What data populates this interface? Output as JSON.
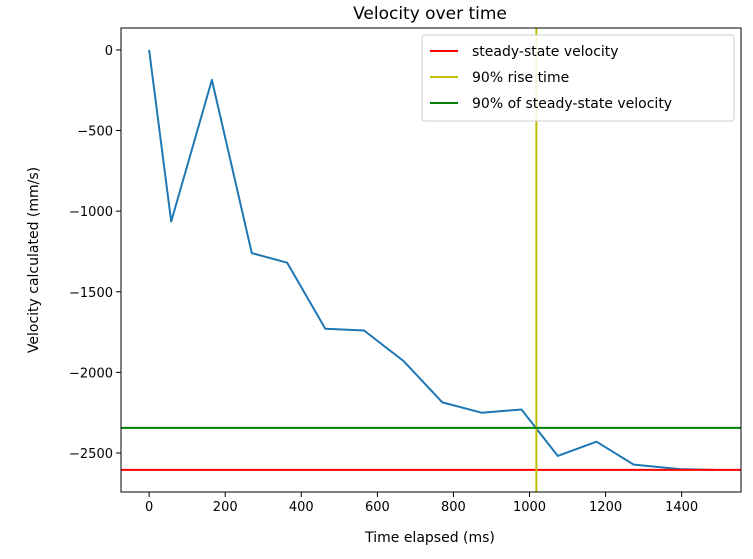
{
  "chart_data": {
    "type": "line",
    "title": "Velocity over time",
    "xlabel": "Time elapsed (ms)",
    "ylabel": "Velocity calculated (mm/s)",
    "xlim": [
      -74,
      1556
    ],
    "ylim": [
      -2742,
      136
    ],
    "xticks": [
      0,
      200,
      400,
      600,
      800,
      1000,
      1200,
      1400
    ],
    "yticks": [
      0,
      -500,
      -1000,
      -1500,
      -2000,
      -2500
    ],
    "grid": false,
    "legend_position": "top-right",
    "series": [
      {
        "color": "#1f77b4",
        "x": [
          0,
          58,
          165,
          270,
          363,
          463,
          565,
          669,
          771,
          874,
          979,
          1074,
          1176,
          1274,
          1396,
          1484
        ],
        "y": [
          0,
          -1064,
          -186,
          -1260,
          -1320,
          -1730,
          -1740,
          -1930,
          -2186,
          -2250,
          -2230,
          -2518,
          -2430,
          -2572,
          -2600,
          -2605
        ]
      }
    ],
    "reference_lines": [
      {
        "name": "steady-state velocity",
        "orientation": "horizontal",
        "value": -2605,
        "color": "#ff0000"
      },
      {
        "name": "90% rise time",
        "orientation": "vertical",
        "value": 1018,
        "color": "#bfbf00"
      },
      {
        "name": "90% of steady-state velocity",
        "orientation": "horizontal",
        "value": -2344,
        "color": "#008000"
      }
    ]
  }
}
